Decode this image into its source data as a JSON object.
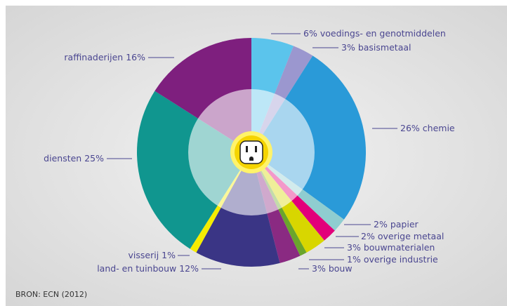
{
  "chart_data": {
    "type": "pie",
    "categories": [
      "voedings- en genotmiddelen",
      "basismetaal",
      "chemie",
      "papier",
      "overige metaal",
      "bouwmaterialen",
      "overige industrie",
      "bouw",
      "land- en tuinbouw",
      "visserij",
      "diensten",
      "raffinaderijen"
    ],
    "values": [
      6,
      3,
      26,
      2,
      2,
      3,
      1,
      3,
      12,
      1,
      25,
      16
    ],
    "value_labels": [
      "6%",
      "3%",
      "26%",
      "2%",
      "2%",
      "3%",
      "1%",
      "3%",
      "12%",
      "1%",
      "25%",
      "16%"
    ],
    "colors": [
      "#5bc4ec",
      "#9b97cf",
      "#2a9ad8",
      "#8fcdd0",
      "#e2007a",
      "#d8d600",
      "#6aa52c",
      "#8a2a82",
      "#3a3585",
      "#f5ec00",
      "#10968f",
      "#7e1f7e"
    ],
    "source": "BRON: ECN (2012)"
  }
}
